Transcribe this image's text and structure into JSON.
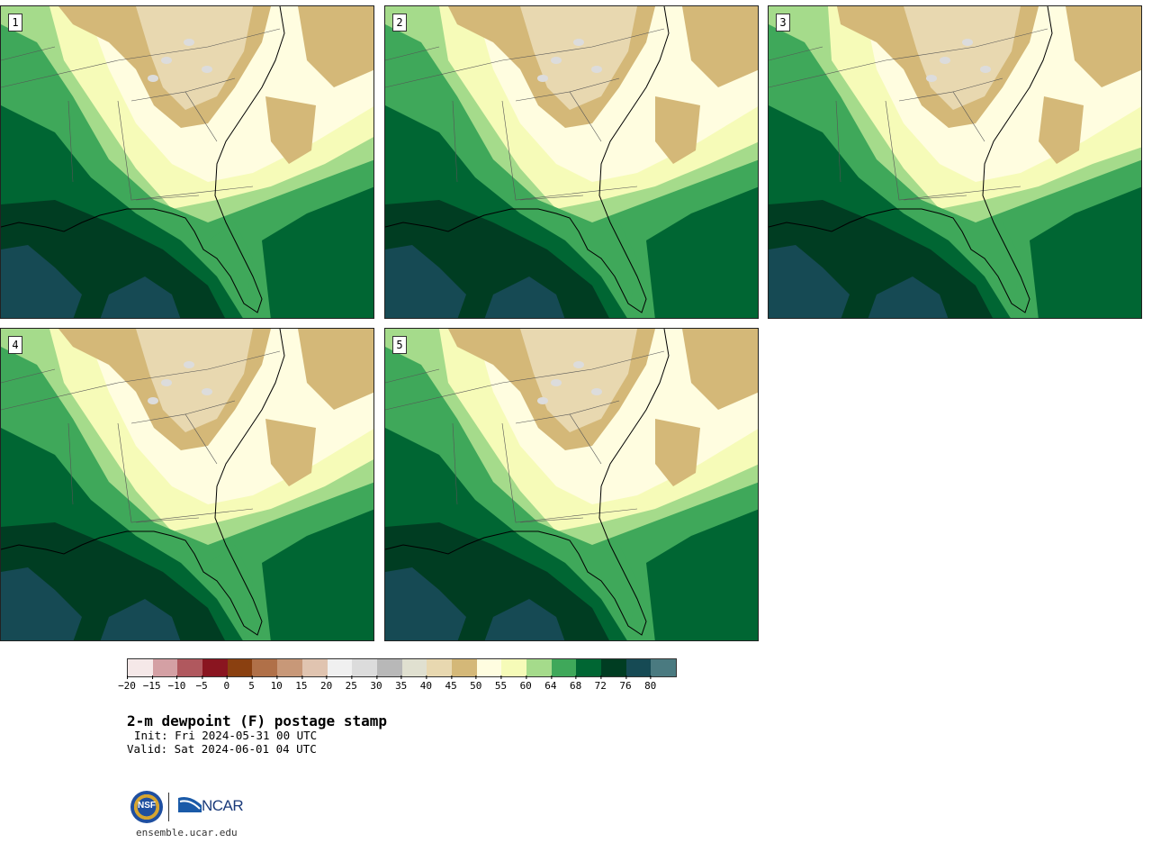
{
  "panels": [
    {
      "label": "1"
    },
    {
      "label": "2"
    },
    {
      "label": "3"
    },
    {
      "label": "4"
    },
    {
      "label": "5"
    }
  ],
  "colorbar": {
    "colors": [
      "#f5e8e8",
      "#d4a0a4",
      "#b0585e",
      "#8a1520",
      "#8a4010",
      "#b07048",
      "#c89878",
      "#e0c4b0",
      "#f0f0f0",
      "#dcdcdc",
      "#b8b8b8",
      "#e0e0d0",
      "#e8d8b0",
      "#d4b878",
      "#fffde0",
      "#f6fbb8",
      "#a5db8b",
      "#3fa85a",
      "#006633",
      "#003d22",
      "#164a54",
      "#4a7a80"
    ],
    "ticks": [
      "−20",
      "−15",
      "−10",
      "−5",
      "0",
      "5",
      "10",
      "15",
      "20",
      "25",
      "30",
      "35",
      "40",
      "45",
      "50",
      "55",
      "60",
      "64",
      "68",
      "72",
      "76",
      "80"
    ]
  },
  "title": "2-m dewpoint (F) postage stamp",
  "init": "Init: Fri 2024-05-31 00 UTC",
  "valid": "Valid: Sat 2024-06-01 04 UTC",
  "logo": {
    "nsf": "NSF",
    "ncar": "NCAR"
  },
  "url": "ensemble.ucar.edu"
}
